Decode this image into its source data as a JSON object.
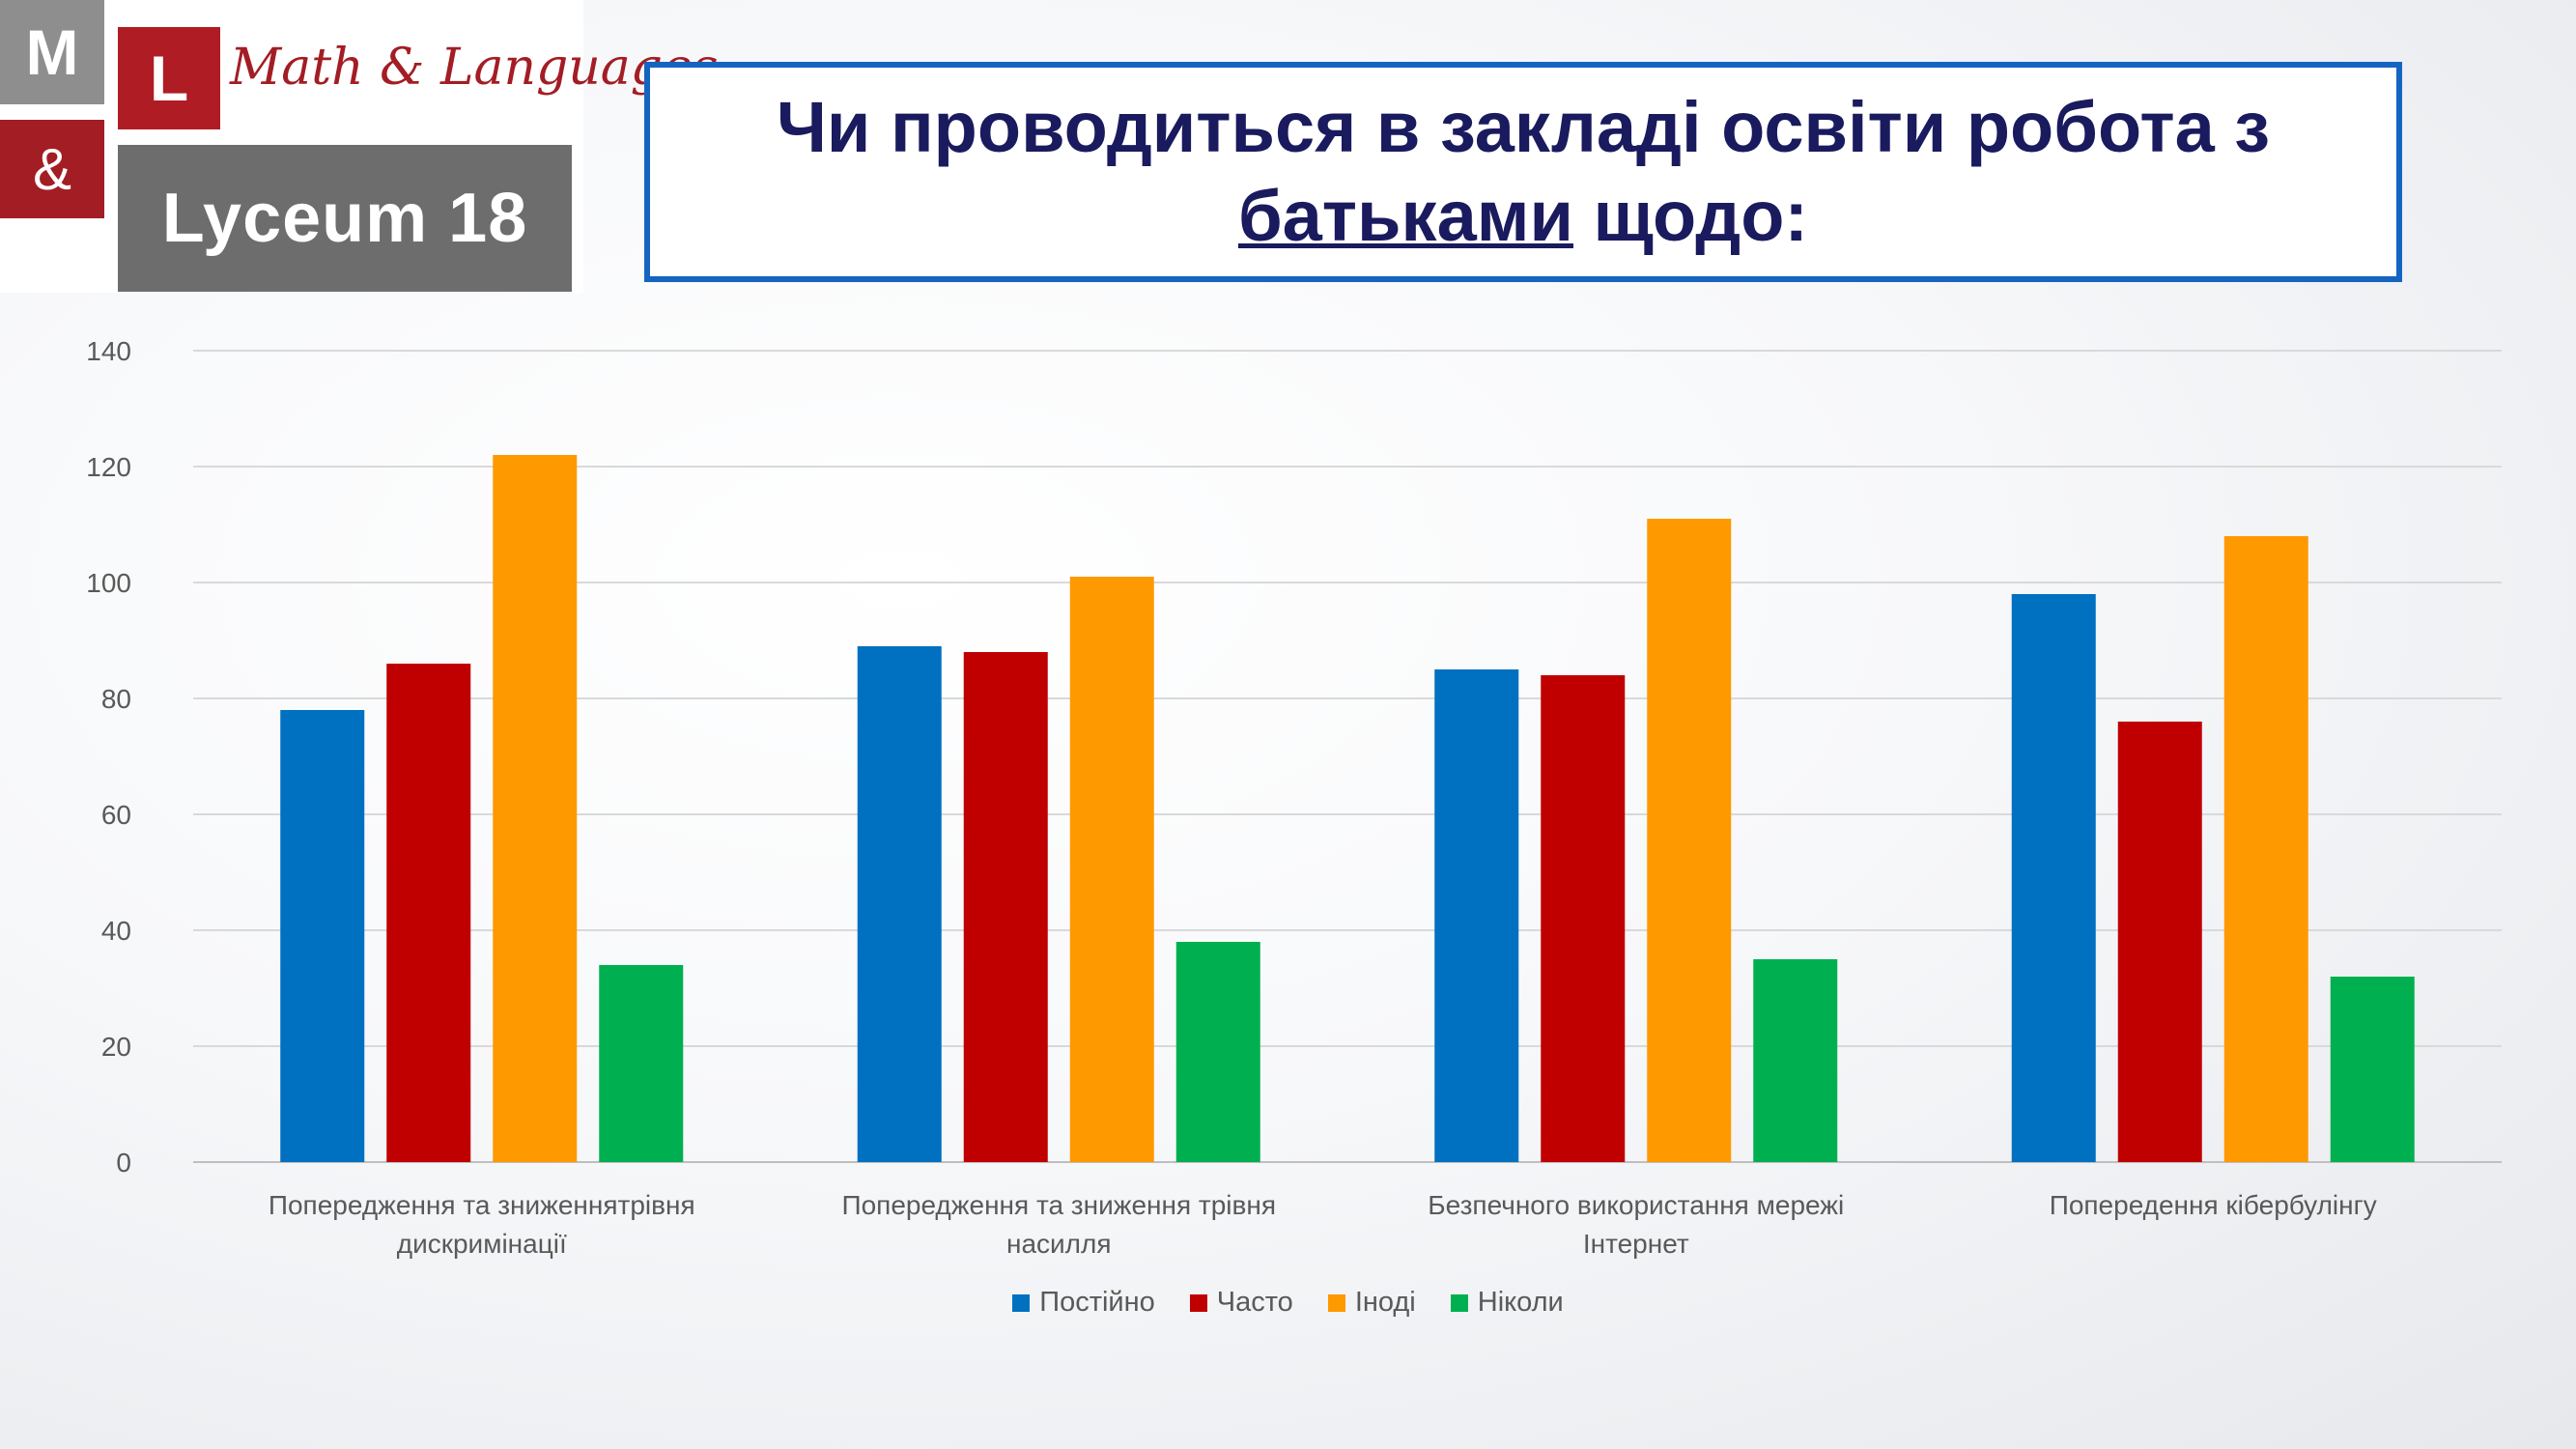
{
  "logo": {
    "tile_m": "M",
    "tile_l": "L",
    "tile_amp": "&",
    "script_name": "Math & Languages",
    "lyceum": "Lyceum 18"
  },
  "title": {
    "line1": "Чи  проводиться в закладі освіти робота з",
    "line2_underlined": "батьками",
    "line2_rest": " щодо:"
  },
  "chart_data": {
    "type": "bar",
    "categories": [
      [
        "Попередження та зниженнятрівня",
        "дискримінації"
      ],
      [
        "Попередження та зниження трівня",
        "насилля"
      ],
      [
        "Безпечного використання  мережі",
        "Інтернет"
      ],
      [
        "Попередення кібербулінгу"
      ]
    ],
    "series": [
      {
        "name": "Постійно",
        "color": "#0070c0",
        "values": [
          78,
          89,
          85,
          98
        ]
      },
      {
        "name": "Часто",
        "color": "#c00000",
        "values": [
          86,
          88,
          84,
          76
        ]
      },
      {
        "name": "Іноді",
        "color": "#ff9900",
        "values": [
          122,
          101,
          111,
          108
        ]
      },
      {
        "name": "Ніколи",
        "color": "#00b050",
        "values": [
          34,
          38,
          35,
          32
        ]
      }
    ],
    "ylim": [
      0,
      140
    ],
    "yticks": [
      "0",
      "20",
      "40",
      "60",
      "80",
      "100",
      "120",
      "140"
    ],
    "grid": true,
    "legend_position": "bottom"
  }
}
